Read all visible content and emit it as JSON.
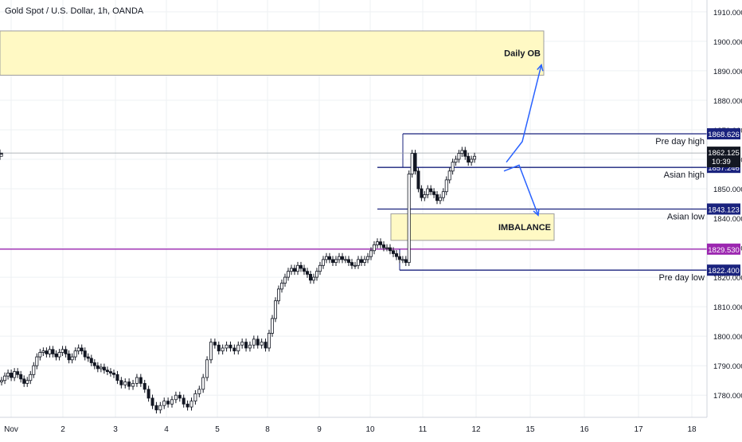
{
  "header": {
    "symbol_title": "Gold Spot / U.S. Dollar, 1h, OANDA"
  },
  "chart_data": {
    "type": "candlestick",
    "y_axis": {
      "range": [
        1772.5,
        1914
      ],
      "ticks": [
        1780,
        1790,
        1800,
        1810,
        1820,
        1830,
        1840,
        1850,
        1860,
        1870,
        1880,
        1890,
        1900,
        1910
      ],
      "tick_labels": [
        "1780.000",
        "1790.000",
        "1800.000",
        "1810.000",
        "1820.000",
        "1830.000",
        "1840.000",
        "1850.000",
        "1860.000",
        "1870.000",
        "1880.000",
        "1890.000",
        "1900.000",
        "1910.000"
      ],
      "position": "right"
    },
    "x_axis": {
      "tick_labels": [
        "Nov",
        "2",
        "3",
        "4",
        "5",
        "8",
        "9",
        "10",
        "11",
        "12",
        "15",
        "16",
        "17",
        "18"
      ]
    },
    "grid": true,
    "current_price": {
      "value": 1862.125,
      "label": "1862.125",
      "countdown": "10:39"
    },
    "price_levels": [
      {
        "value": 1868.626,
        "label": "1868.626",
        "name": "Pre day high",
        "color": "#1a237e"
      },
      {
        "value": 1857.246,
        "label": "1857.246",
        "name": "Asian high",
        "color": "#1a237e"
      },
      {
        "value": 1843.123,
        "label": "1843.123",
        "name": "Asian low",
        "color": "#1a237e"
      },
      {
        "value": 1829.53,
        "label": "1829.530",
        "name": "",
        "color": "#9c27b0"
      },
      {
        "value": 1822.4,
        "label": "1822.400",
        "name": "Pre day low",
        "color": "#1a237e"
      }
    ],
    "zones": [
      {
        "name": "Daily OB",
        "y_top": 1903.5,
        "y_bottom": 1888.5,
        "fill": "#fff9c4"
      },
      {
        "name": "IMBALANCE",
        "y_top": 1841.5,
        "y_bottom": 1832.5,
        "fill": "#fff9c4"
      }
    ],
    "candles_close": [
      1785,
      1786.5,
      1787.5,
      1786,
      1788,
      1787,
      1785.5,
      1784,
      1785,
      1787,
      1790,
      1793,
      1794.5,
      1795,
      1794,
      1795.5,
      1794,
      1793,
      1794.5,
      1795.5,
      1794,
      1792,
      1793,
      1795,
      1796,
      1795,
      1793,
      1792.5,
      1791,
      1790,
      1789,
      1789.5,
      1788.5,
      1788,
      1787.5,
      1787,
      1785,
      1783.5,
      1784.5,
      1783,
      1784,
      1786,
      1784,
      1782,
      1779,
      1776.5,
      1775,
      1776.5,
      1778,
      1777,
      1778.5,
      1780,
      1779,
      1777,
      1776,
      1778,
      1780.5,
      1782,
      1786,
      1792,
      1798,
      1797,
      1795,
      1796,
      1797,
      1796,
      1795,
      1797,
      1798,
      1796,
      1797,
      1799,
      1797,
      1798,
      1796,
      1801,
      1806,
      1812,
      1816,
      1818,
      1820,
      1822,
      1823,
      1822,
      1824,
      1823,
      1822,
      1821,
      1819,
      1820,
      1822,
      1824,
      1826,
      1827,
      1826,
      1825,
      1826,
      1827,
      1826,
      1826,
      1825,
      1824,
      1824,
      1826,
      1825,
      1826,
      1827,
      1829,
      1831,
      1832,
      1831,
      1830,
      1830,
      1829,
      1828,
      1827,
      1826,
      1826,
      1825,
      1855,
      1862,
      1856,
      1850,
      1847,
      1848,
      1850,
      1849,
      1848,
      1846,
      1847,
      1849,
      1853,
      1856,
      1859,
      1860,
      1862,
      1863,
      1861,
      1859,
      1860,
      1861,
      1862,
      1862,
      1862.1
    ],
    "projections": [
      {
        "name": "bullish-projection",
        "points": [
          [
            1855,
            1859
          ],
          [
            1858,
            1866
          ],
          [
            1861,
            1892
          ]
        ]
      },
      {
        "name": "bearish-projection",
        "points": [
          [
            1855,
            1856
          ],
          [
            1858,
            1858
          ],
          [
            1861,
            1841
          ]
        ]
      }
    ]
  }
}
